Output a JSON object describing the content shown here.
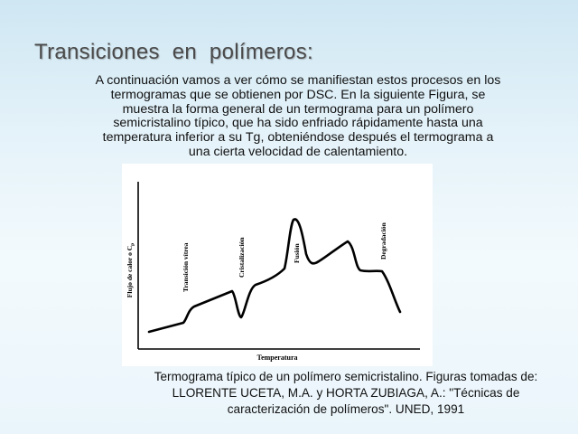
{
  "slide": {
    "title": "Transiciones  en  polímeros:",
    "intro_lines": [
      "A continuación vamos a ver cómo se manifiestan estos procesos en los",
      "termogramas que se obtienen por DSC. En la siguiente Figura, se",
      "muestra la forma general de un termograma para un polímero",
      "semicristalino típico, que ha sido enfriado rápidamente hasta una",
      "temperatura inferior a su Tg, obteniéndose después el termograma a",
      "una cierta velocidad de calentamiento."
    ],
    "caption_lines": [
      "Termograma típico de un polímero semicristalino. Figuras tomadas de:",
      "LLORENTE UCETA, M.A. y HORTA ZUBIAGA, A.: \"Técnicas de",
      "caracterización de polímeros\". UNED, 1991"
    ]
  },
  "figure": {
    "x_axis_label": "Temperatura",
    "y_axis_label": "Flujo de calor o C",
    "y_axis_subscript": "p",
    "annotations": {
      "glass_transition": "Transición vítrea",
      "crystallization": "Cristalización",
      "melting": "Fusión",
      "degradation": "Degradación"
    }
  }
}
